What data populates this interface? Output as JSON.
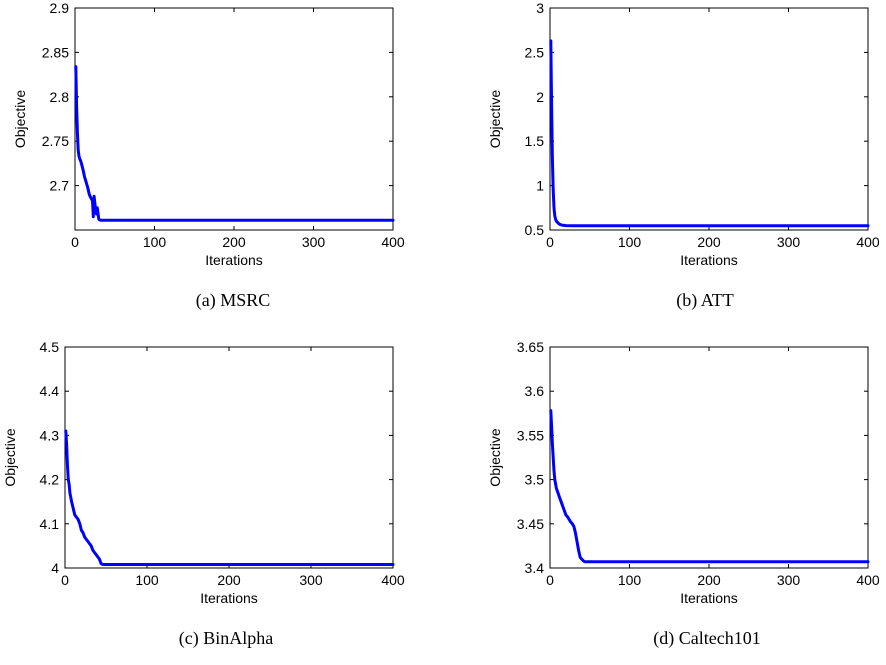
{
  "chart_data": [
    {
      "type": "line",
      "caption": "(a) MSRC",
      "xlabel": "Iterations",
      "ylabel": "Objective",
      "xlim": [
        0,
        400
      ],
      "ylim": [
        2.65,
        2.9
      ],
      "xticks": [
        0,
        100,
        200,
        300,
        400
      ],
      "yticks": [
        2.7,
        2.75,
        2.8,
        2.85,
        2.9
      ],
      "ytick_labels": [
        "2.7",
        "2.75",
        "2.8",
        "2.85",
        "2.9"
      ],
      "grid": false,
      "color": "#0000ff",
      "series": [
        {
          "x": [
            1,
            2,
            3,
            4,
            5,
            6,
            7,
            8,
            10,
            12,
            14,
            16,
            18,
            20,
            22,
            23,
            24,
            26,
            27,
            28,
            30,
            32,
            40,
            60,
            100,
            150,
            200,
            250,
            300,
            350,
            400
          ],
          "y": [
            2.834,
            2.79,
            2.76,
            2.74,
            2.733,
            2.73,
            2.728,
            2.725,
            2.718,
            2.71,
            2.704,
            2.698,
            2.69,
            2.686,
            2.683,
            2.665,
            2.688,
            2.672,
            2.668,
            2.675,
            2.662,
            2.661,
            2.661,
            2.661,
            2.661,
            2.661,
            2.661,
            2.661,
            2.661,
            2.661,
            2.661
          ]
        }
      ]
    },
    {
      "type": "line",
      "caption": "(b) ATT",
      "xlabel": "Iterations",
      "ylabel": "Objective",
      "xlim": [
        0,
        400
      ],
      "ylim": [
        0.5,
        3
      ],
      "xticks": [
        0,
        100,
        200,
        300,
        400
      ],
      "yticks": [
        0.5,
        1,
        1.5,
        2,
        2.5,
        3
      ],
      "ytick_labels": [
        "0.5",
        "1",
        "1.5",
        "2",
        "2.5",
        "3"
      ],
      "grid": false,
      "color": "#0000ff",
      "series": [
        {
          "x": [
            1,
            2,
            3,
            4,
            5,
            6,
            7,
            8,
            10,
            12,
            15,
            20,
            30,
            50,
            100,
            200,
            300,
            400
          ],
          "y": [
            2.63,
            1.9,
            1.3,
            0.95,
            0.75,
            0.66,
            0.62,
            0.6,
            0.58,
            0.565,
            0.555,
            0.55,
            0.548,
            0.547,
            0.547,
            0.547,
            0.547,
            0.547
          ]
        }
      ]
    },
    {
      "type": "line",
      "caption": "(c) BinAlpha",
      "xlabel": "Iterations",
      "ylabel": "Objective",
      "xlim": [
        0,
        400
      ],
      "ylim": [
        4,
        4.5
      ],
      "xticks": [
        0,
        100,
        200,
        300,
        400
      ],
      "yticks": [
        4,
        4.1,
        4.2,
        4.3,
        4.4,
        4.5
      ],
      "ytick_labels": [
        "4",
        "4.1",
        "4.2",
        "4.3",
        "4.4",
        "4.5"
      ],
      "grid": false,
      "color": "#0000ff",
      "series": [
        {
          "x": [
            1,
            2,
            3,
            4,
            5,
            6,
            8,
            10,
            12,
            14,
            16,
            18,
            20,
            22,
            24,
            26,
            28,
            30,
            32,
            34,
            36,
            38,
            40,
            42,
            44,
            46,
            50,
            100,
            200,
            300,
            400
          ],
          "y": [
            4.31,
            4.28,
            4.23,
            4.2,
            4.19,
            4.17,
            4.15,
            4.135,
            4.12,
            4.115,
            4.11,
            4.1,
            4.085,
            4.08,
            4.07,
            4.065,
            4.06,
            4.055,
            4.05,
            4.04,
            4.035,
            4.03,
            4.025,
            4.02,
            4.01,
            4.008,
            4.008,
            4.008,
            4.008,
            4.008,
            4.008
          ]
        }
      ]
    },
    {
      "type": "line",
      "caption": "(d) Caltech101",
      "xlabel": "Iterations",
      "ylabel": "Objective",
      "xlim": [
        0,
        400
      ],
      "ylim": [
        3.4,
        3.65
      ],
      "xticks": [
        0,
        100,
        200,
        300,
        400
      ],
      "yticks": [
        3.4,
        3.45,
        3.5,
        3.55,
        3.6,
        3.65
      ],
      "ytick_labels": [
        "3.4",
        "3.45",
        "3.5",
        "3.55",
        "3.6",
        "3.65"
      ],
      "grid": false,
      "color": "#0000ff",
      "series": [
        {
          "x": [
            1,
            2,
            3,
            4,
            5,
            6,
            7,
            8,
            10,
            12,
            14,
            16,
            18,
            20,
            22,
            24,
            26,
            28,
            30,
            32,
            34,
            36,
            38,
            40,
            42,
            44,
            46,
            50,
            100,
            200,
            300,
            400
          ],
          "y": [
            3.578,
            3.56,
            3.54,
            3.525,
            3.51,
            3.5,
            3.495,
            3.49,
            3.485,
            3.48,
            3.475,
            3.47,
            3.465,
            3.46,
            3.458,
            3.455,
            3.452,
            3.45,
            3.447,
            3.44,
            3.43,
            3.42,
            3.412,
            3.41,
            3.408,
            3.407,
            3.407,
            3.407,
            3.407,
            3.407,
            3.407,
            3.407
          ]
        }
      ]
    }
  ]
}
